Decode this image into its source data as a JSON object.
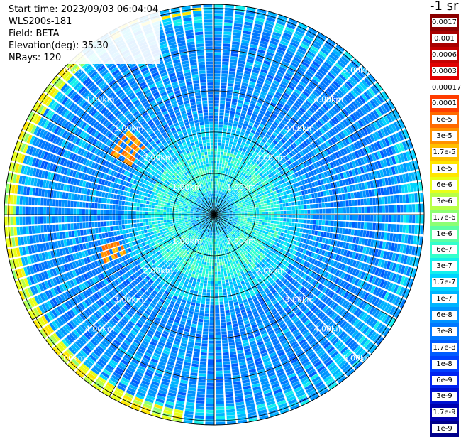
{
  "info": {
    "start_time": "Start time: 2023/09/03 06:04:04",
    "device": "WLS200s-181",
    "field": "Field: BETA",
    "elevation": "Elevation(deg): 35.30",
    "nrays": "NRays: 120"
  },
  "colorbar": {
    "title": "-1 sr",
    "levels": [
      {
        "label": "0.0017",
        "color": "#8b0000"
      },
      {
        "label": "0.001",
        "color": "#a80000"
      },
      {
        "label": "0.0006",
        "color": "#c40000"
      },
      {
        "label": "0.0003",
        "color": "#e00000"
      },
      {
        "label": "0.00017",
        "color": "#ffffff"
      },
      {
        "label": "0.0001",
        "color": "#ff3c00"
      },
      {
        "label": "6e-5",
        "color": "#ff6a00"
      },
      {
        "label": "3e-5",
        "color": "#ff9200"
      },
      {
        "label": "1.7e-5",
        "color": "#ffbf00"
      },
      {
        "label": "1e-5",
        "color": "#ffe600"
      },
      {
        "label": "6e-6",
        "color": "#e8ff18"
      },
      {
        "label": "3e-6",
        "color": "#b8ff48"
      },
      {
        "label": "1.7e-6",
        "color": "#8cff74"
      },
      {
        "label": "1e-6",
        "color": "#5cffa4"
      },
      {
        "label": "6e-7",
        "color": "#34ffcc"
      },
      {
        "label": "3e-7",
        "color": "#14f0ec"
      },
      {
        "label": "1.7e-7",
        "color": "#00d4ff"
      },
      {
        "label": "1e-7",
        "color": "#00b4ff"
      },
      {
        "label": "6e-8",
        "color": "#0094ff"
      },
      {
        "label": "3e-8",
        "color": "#0078ff"
      },
      {
        "label": "1.7e-8",
        "color": "#005cff"
      },
      {
        "label": "1e-8",
        "color": "#0040ff"
      },
      {
        "label": "6e-9",
        "color": "#0024f0"
      },
      {
        "label": "3e-9",
        "color": "#0010d0"
      },
      {
        "label": "1.7e-9",
        "color": "#0000b0"
      },
      {
        "label": "1e-9",
        "color": "#00008a"
      }
    ]
  },
  "chart_data": {
    "type": "heatmap",
    "projection": "polar (PPI scan)",
    "field": "BETA",
    "elevation_deg": 35.3,
    "n_rays": 120,
    "range_ring_labels": [
      "1.00km",
      "2.00km",
      "3.00km",
      "4.00km",
      "5.00km"
    ],
    "range_rings_km": [
      1,
      2,
      3,
      4,
      5
    ],
    "max_range_km": 5.1,
    "radial_lines_count": 12,
    "colorbar_unit": "-1 sr",
    "features": [
      {
        "region": "near range 0-2 km",
        "values": "~1e-7 to 3e-6 (cyan/green)"
      },
      {
        "region": "mid range 2-4.5 km",
        "values": "~1e-8 to 1e-7 (blue)"
      },
      {
        "region": "outer edge west/south-west ~4.8-5 km",
        "values": "~1e-6 to 1e-5 (green/yellow)"
      },
      {
        "region": "west ~2.3-3 km, azimuth ~250-300 deg",
        "values": "~1.7e-5 to 6e-5 (orange)"
      }
    ]
  }
}
